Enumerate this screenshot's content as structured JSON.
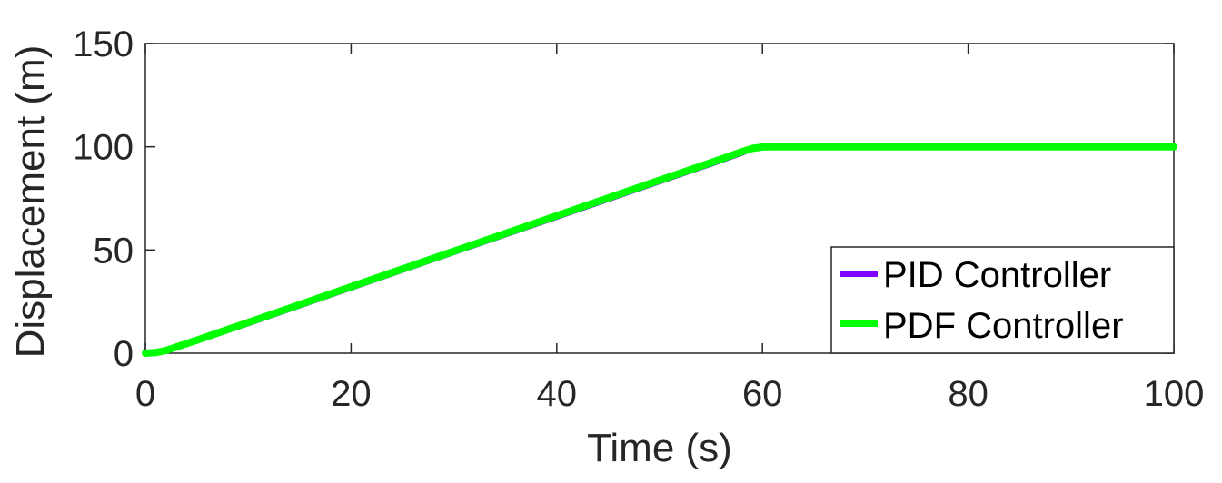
{
  "chart_data": {
    "type": "line",
    "xlabel": "Time (s)",
    "ylabel": "Displacement (m)",
    "xlim": [
      0,
      100
    ],
    "ylim": [
      0,
      150
    ],
    "xticks": [
      "0",
      "20",
      "40",
      "60",
      "80",
      "100"
    ],
    "yticks": [
      "0",
      "50",
      "100",
      "150"
    ],
    "grid": false,
    "legend_position": "bottom-right",
    "series": [
      {
        "name": "PID Controller",
        "color": "#7f00ff",
        "x": [
          0,
          1,
          2,
          3,
          5,
          10,
          20,
          30,
          40,
          50,
          55,
          58,
          59,
          60,
          61,
          70,
          80,
          90,
          100
        ],
        "y": [
          0,
          0.2,
          1,
          2.5,
          5.7,
          14.1,
          31.4,
          48.6,
          65.7,
          82.9,
          91.4,
          96.7,
          98.7,
          99.7,
          100,
          100,
          100,
          100,
          100
        ]
      },
      {
        "name": "PDF Controller",
        "color": "#00ff00",
        "x": [
          0,
          1,
          2,
          3,
          5,
          10,
          20,
          30,
          40,
          50,
          55,
          58,
          59,
          60,
          61,
          70,
          80,
          90,
          100
        ],
        "y": [
          0,
          0.3,
          1.3,
          3,
          6.3,
          14.9,
          32.2,
          49.4,
          66.6,
          83.8,
          92.3,
          97.6,
          99.2,
          99.9,
          100,
          100,
          100,
          100,
          100
        ]
      }
    ]
  }
}
